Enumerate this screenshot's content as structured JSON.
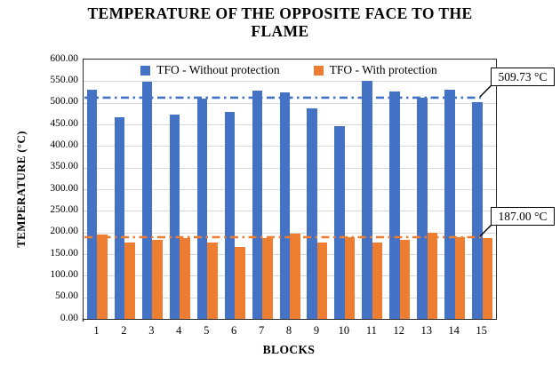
{
  "title_lines": [
    "TEMPERATURE OF THE OPPOSITE FACE TO THE",
    "FLAME"
  ],
  "chart_data": {
    "type": "bar",
    "title": "TEMPERATURE OF THE OPPOSITE FACE TO THE FLAME",
    "xlabel": "BLOCKS",
    "ylabel": "TEMPERATURE (°C)",
    "ylim": [
      0,
      600
    ],
    "ytick_step": 50,
    "ytick_labels": [
      "600.00",
      "550.00",
      "500.00",
      "450.00",
      "400.00",
      "350.00",
      "300.00",
      "250.00",
      "200.00",
      "150.00",
      "100.00",
      "50.00",
      "0.00"
    ],
    "categories": [
      "1",
      "2",
      "3",
      "4",
      "5",
      "6",
      "7",
      "8",
      "9",
      "10",
      "11",
      "12",
      "13",
      "14",
      "15"
    ],
    "series": [
      {
        "name": "TFO - Without protection",
        "color": "#4472C4",
        "values": [
          531,
          466,
          549,
          473,
          509,
          479,
          528,
          524,
          488,
          446,
          551,
          527,
          512,
          531,
          501
        ]
      },
      {
        "name": "TFO - With protection",
        "color": "#ED7D31",
        "values": [
          196,
          177,
          183,
          186,
          177,
          166,
          188,
          197,
          177,
          189,
          177,
          183,
          200,
          189,
          186
        ]
      }
    ],
    "reference_lines": [
      {
        "label": "509.73 °C",
        "value": 509.73,
        "color": "#4472C4",
        "style": "dash-dot"
      },
      {
        "label": "187.00 °C",
        "value": 187.0,
        "color": "#ED7D31",
        "style": "dash-dot"
      }
    ],
    "legend_position": "top-center-inside",
    "grid": true,
    "gridline_color": "#D9D9D9",
    "plot_border_color": "#2B2B2B"
  }
}
